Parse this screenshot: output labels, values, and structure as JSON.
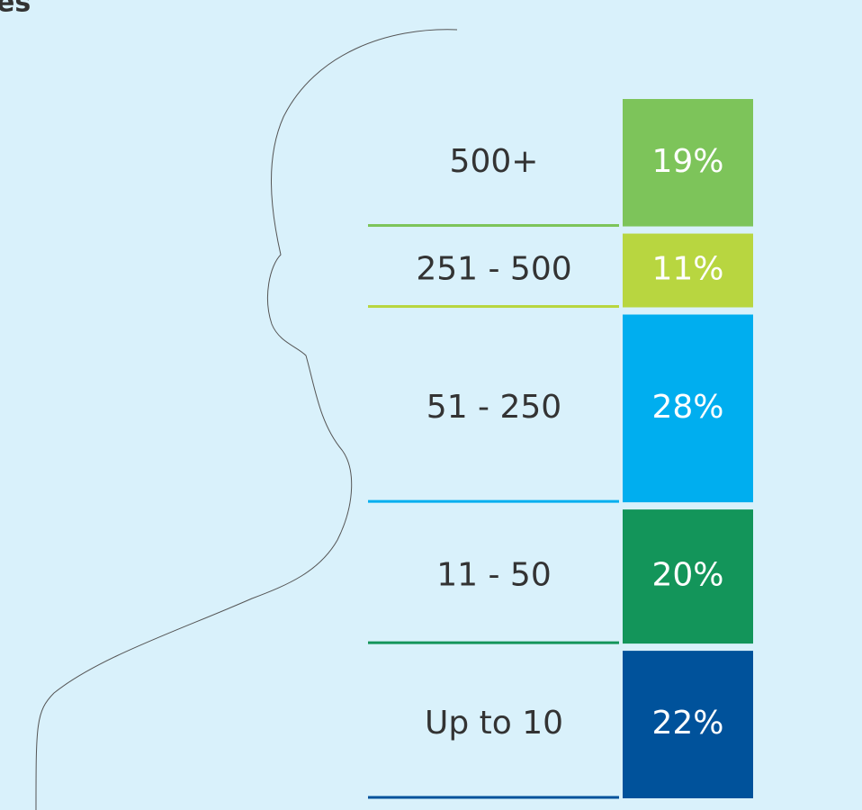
{
  "chart_data": {
    "type": "bar",
    "title": "es",
    "categories": [
      "500+",
      "251 - 500",
      "51 - 250",
      "11 - 50",
      "Up to 10"
    ],
    "values": [
      19,
      11,
      28,
      20,
      22
    ],
    "value_labels": [
      "19%",
      "11%",
      "28%",
      "20%",
      "22%"
    ],
    "colors": [
      "#7dc45a",
      "#b8d640",
      "#00aeef",
      "#13955a",
      "#00529b"
    ]
  }
}
